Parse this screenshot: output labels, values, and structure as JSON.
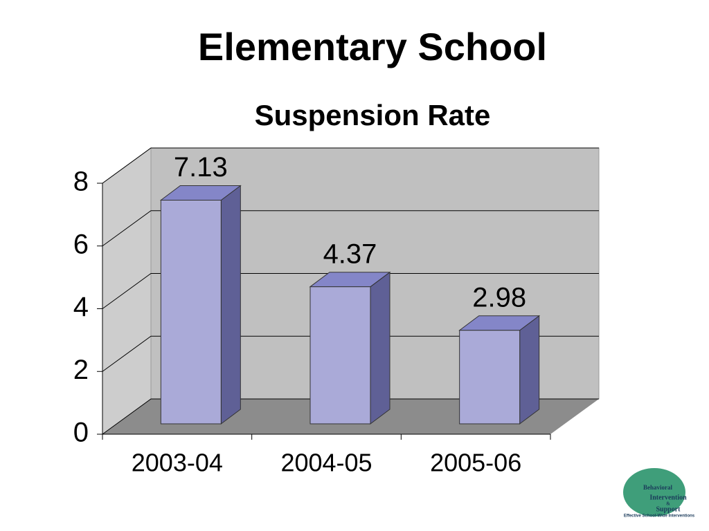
{
  "chart_data": {
    "type": "bar3d",
    "title": "Elementary School",
    "subtitle": "Suspension Rate",
    "categories": [
      "2003-04",
      "2004-05",
      "2005-06"
    ],
    "values": [
      7.13,
      4.37,
      2.98
    ],
    "color": "#aaaad8",
    "side_color": "#5f6096",
    "top_color": "#8486c8",
    "ylim": [
      0,
      8
    ],
    "yticks": [
      0,
      2,
      4,
      6,
      8
    ],
    "grid": true,
    "data_labels": true
  },
  "logo": {
    "lines": [
      "Behavioral",
      "Intervention",
      "&",
      "Support",
      "Effective School-Wide Interventions"
    ]
  }
}
